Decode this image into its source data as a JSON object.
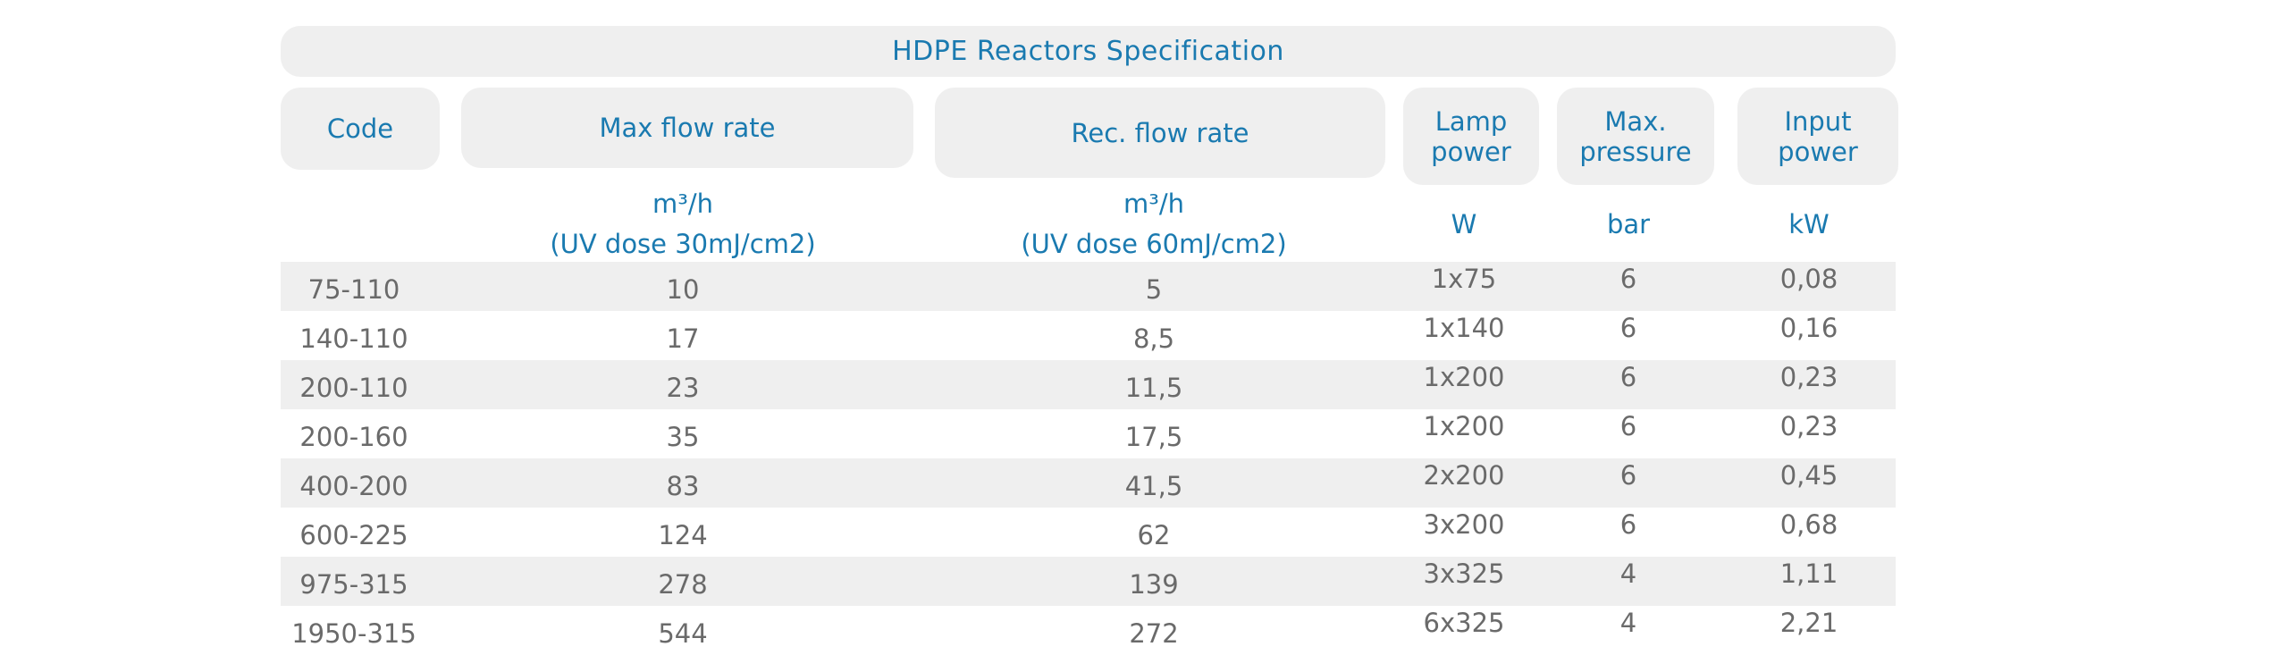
{
  "title": "HDPE Reactors Specification",
  "headers": {
    "code": "Code",
    "max_flow": "Max flow rate",
    "rec_flow": "Rec. flow rate",
    "lamp_power_1": "Lamp",
    "lamp_power_2": "power",
    "max_pressure_1": "Max.",
    "max_pressure_2": "pressure",
    "input_power_1": "Input",
    "input_power_2": "power"
  },
  "units": {
    "max_flow_unit": "m³/h",
    "max_flow_dose": "(UV dose 30mJ/cm2)",
    "rec_flow_unit": "m³/h",
    "rec_flow_dose": "(UV dose 60mJ/cm2)",
    "lamp_power": "W",
    "max_pressure": "bar",
    "input_power": "kW"
  },
  "rows": [
    {
      "code": "75-110",
      "max_flow": "10",
      "rec_flow": "5",
      "lamp": "1x75",
      "pressure": "6",
      "input": "0,08"
    },
    {
      "code": "140-110",
      "max_flow": "17",
      "rec_flow": "8,5",
      "lamp": "1x140",
      "pressure": "6",
      "input": "0,16"
    },
    {
      "code": "200-110",
      "max_flow": "23",
      "rec_flow": "11,5",
      "lamp": "1x200",
      "pressure": "6",
      "input": "0,23"
    },
    {
      "code": "200-160",
      "max_flow": "35",
      "rec_flow": "17,5",
      "lamp": "1x200",
      "pressure": "6",
      "input": "0,23"
    },
    {
      "code": "400-200",
      "max_flow": "83",
      "rec_flow": "41,5",
      "lamp": "2x200",
      "pressure": "6",
      "input": "0,45"
    },
    {
      "code": "600-225",
      "max_flow": "124",
      "rec_flow": "62",
      "lamp": "3x200",
      "pressure": "6",
      "input": "0,68"
    },
    {
      "code": "975-315",
      "max_flow": "278",
      "rec_flow": "139",
      "lamp": "3x325",
      "pressure": "4",
      "input": "1,11"
    },
    {
      "code": "1950-315",
      "max_flow": "544",
      "rec_flow": "272",
      "lamp": "6x325",
      "pressure": "4",
      "input": "2,21"
    }
  ]
}
